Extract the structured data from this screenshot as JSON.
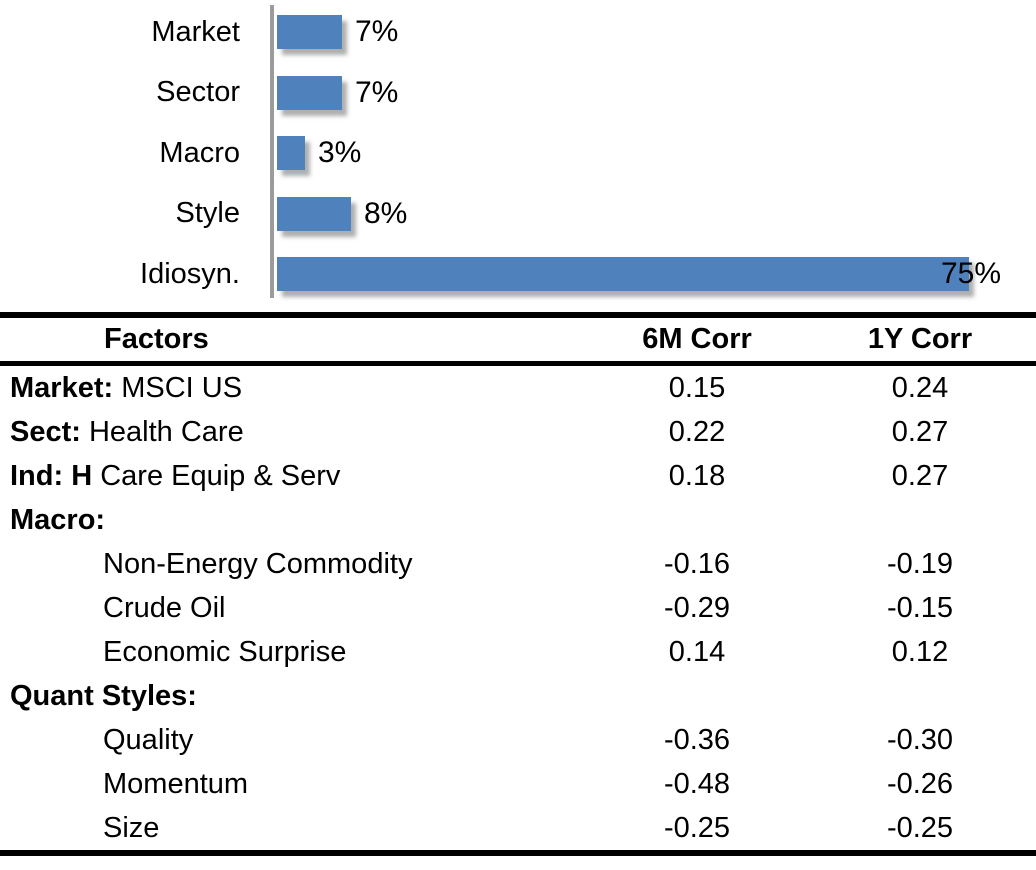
{
  "chart_data": [
    {
      "type": "bar",
      "orientation": "horizontal",
      "title": "",
      "xlabel": "",
      "ylabel": "",
      "categories": [
        "Market",
        "Sector",
        "Macro",
        "Style",
        "Idiosyn."
      ],
      "values": [
        7,
        7,
        3,
        8,
        75
      ],
      "value_labels": [
        "7%",
        "7%",
        "3%",
        "8%",
        "75%"
      ],
      "xlim": [
        0,
        80
      ],
      "grid": false,
      "legend": false,
      "bar_color": "#4f81bd",
      "axis_line_color": "#9b9b9b"
    },
    {
      "type": "table",
      "title": "",
      "columns": [
        "Factors",
        "6M Corr",
        "1Y Corr"
      ],
      "rows": [
        {
          "factor_bold": "Market:",
          "factor_rest": " MSCI US",
          "indent": false,
          "corr_6m": "0.15",
          "corr_1y": "0.24"
        },
        {
          "factor_bold": "Sect:",
          "factor_rest": " Health Care",
          "indent": false,
          "corr_6m": "0.22",
          "corr_1y": "0.27"
        },
        {
          "factor_bold": "Ind: H",
          "factor_rest": " Care Equip & Serv",
          "indent": false,
          "corr_6m": "0.18",
          "corr_1y": "0.27"
        },
        {
          "factor_bold": "Macro:",
          "factor_rest": "",
          "indent": false,
          "corr_6m": "",
          "corr_1y": ""
        },
        {
          "factor_bold": "",
          "factor_rest": "Non-Energy Commodity",
          "indent": true,
          "corr_6m": "-0.16",
          "corr_1y": "-0.19"
        },
        {
          "factor_bold": "",
          "factor_rest": "Crude Oil",
          "indent": true,
          "corr_6m": "-0.29",
          "corr_1y": "-0.15"
        },
        {
          "factor_bold": "",
          "factor_rest": "Economic Surprise",
          "indent": true,
          "corr_6m": "0.14",
          "corr_1y": "0.12"
        },
        {
          "factor_bold": "Quant Styles:",
          "factor_rest": "",
          "indent": false,
          "corr_6m": "",
          "corr_1y": ""
        },
        {
          "factor_bold": "",
          "factor_rest": "Quality",
          "indent": true,
          "corr_6m": "-0.36",
          "corr_1y": "-0.30"
        },
        {
          "factor_bold": "",
          "factor_rest": "Momentum",
          "indent": true,
          "corr_6m": "-0.48",
          "corr_1y": "-0.26"
        },
        {
          "factor_bold": "",
          "factor_rest": "Size",
          "indent": true,
          "corr_6m": "-0.25",
          "corr_1y": "-0.25"
        }
      ]
    }
  ]
}
